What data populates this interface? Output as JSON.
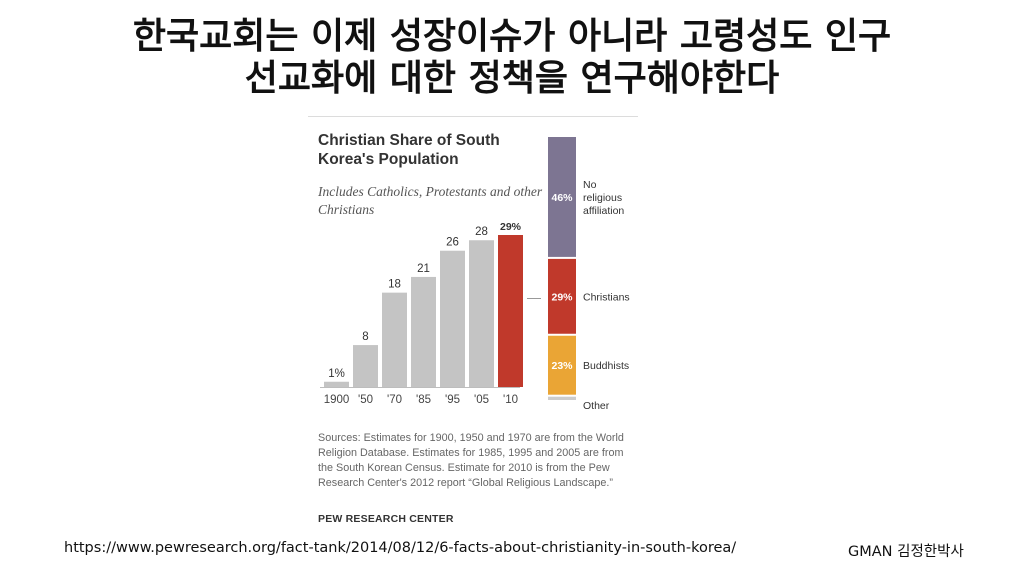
{
  "slide": {
    "title_line1": "한국교회는 이제 성장이슈가 아니라 고령성도 인구",
    "title_line2": "선교화에 대한 정책을 연구해야한다",
    "source_url": "https://www.pewresearch.org/fact-tank/2014/08/12/6-facts-about-christianity-in-south-korea/",
    "author": "GMAN 김정한박사"
  },
  "chart_data": [
    {
      "type": "bar",
      "title": "Christian Share of South Korea's Population",
      "subtitle": "Includes Catholics, Protestants and other Christians",
      "categories": [
        "1900",
        "'50",
        "'70",
        "'85",
        "'95",
        "'05",
        "'10"
      ],
      "values": [
        1,
        8,
        18,
        21,
        26,
        28,
        29
      ],
      "value_labels": [
        "1%",
        "8",
        "18",
        "21",
        "26",
        "28",
        "29%"
      ],
      "highlight_category": "'10",
      "colors": {
        "bar": "#c4c4c4",
        "highlight": "#c0392b"
      },
      "ylim": [
        0,
        29
      ],
      "grid": false,
      "source": "Sources: Estimates for 1900, 1950 and 1970 are from the World Religion Database. Estimates for 1985, 1995 and 2005 are from the South Korean Census. Estimate for 2010 is from the Pew Research Center's 2012 report “Global Religious Landscape.”",
      "credit": "PEW RESEARCH CENTER"
    },
    {
      "type": "bar",
      "stacked": true,
      "segments": [
        {
          "name": "No religious affiliation",
          "label_lines": [
            "No",
            "religious",
            "affiliation"
          ],
          "value": 46,
          "value_label": "46%",
          "color": "#7d7592"
        },
        {
          "name": "Christians",
          "label_lines": [
            "Christians"
          ],
          "value": 29,
          "value_label": "29%",
          "color": "#c0392b"
        },
        {
          "name": "Buddhists",
          "label_lines": [
            "Buddhists"
          ],
          "value": 23,
          "value_label": "23%",
          "color": "#eaa535"
        },
        {
          "name": "Other",
          "label_lines": [
            "Other"
          ],
          "value": 2,
          "value_label": "",
          "color": "#cccccc"
        }
      ]
    }
  ]
}
